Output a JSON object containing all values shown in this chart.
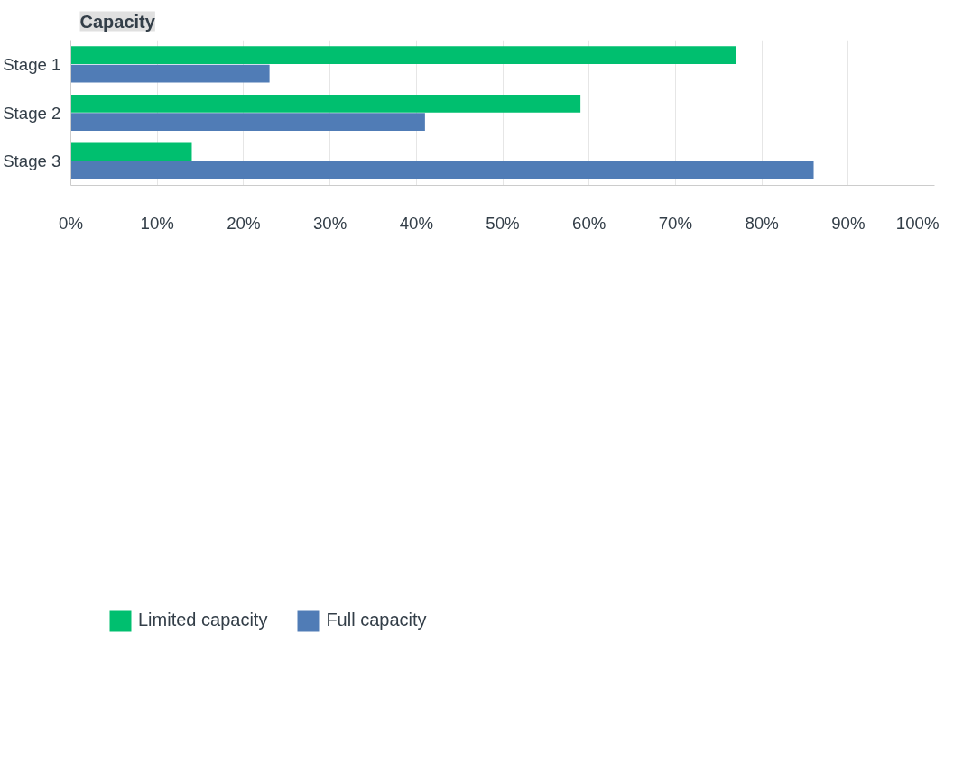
{
  "chart_data": {
    "type": "bar",
    "orientation": "horizontal",
    "title": "Capacity",
    "categories": [
      "Stage 1",
      "Stage 2",
      "Stage 3"
    ],
    "series": [
      {
        "name": "Limited capacity",
        "color": "#00bf6f",
        "values": [
          77,
          59,
          14
        ]
      },
      {
        "name": "Full capacity",
        "color": "#507cb6",
        "values": [
          23,
          41,
          86
        ]
      }
    ],
    "xlim": [
      0,
      100
    ],
    "xticks": [
      {
        "value": 0,
        "label": "0%"
      },
      {
        "value": 10,
        "label": "10%"
      },
      {
        "value": 20,
        "label": "20%"
      },
      {
        "value": 30,
        "label": "30%"
      },
      {
        "value": 40,
        "label": "40%"
      },
      {
        "value": 50,
        "label": "50%"
      },
      {
        "value": 60,
        "label": "60%"
      },
      {
        "value": 70,
        "label": "70%"
      },
      {
        "value": 80,
        "label": "80%"
      },
      {
        "value": 90,
        "label": "90%"
      },
      {
        "value": 100,
        "label": "100%"
      }
    ],
    "grid": "x",
    "legend": "bottom left"
  }
}
